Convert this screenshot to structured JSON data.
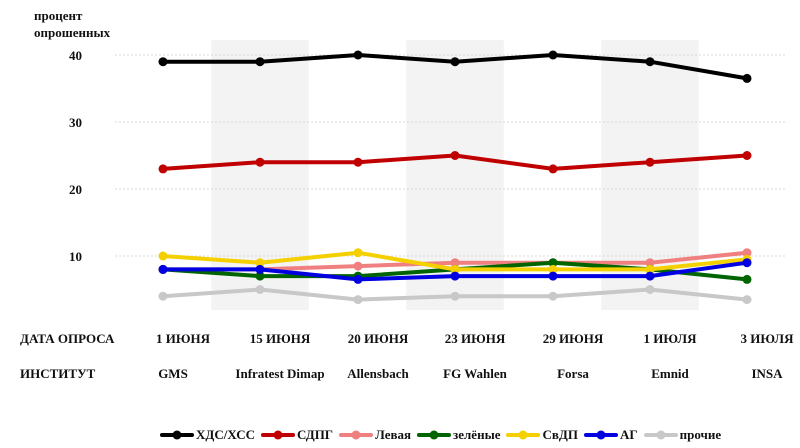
{
  "chart_data": {
    "type": "line",
    "ylabel": "процент опрошенных",
    "ylim": [
      0,
      42
    ],
    "yticks": [
      10,
      20,
      30,
      40
    ],
    "row_labels": {
      "date": "ДАТА ОПРОСА",
      "institute": "ИНСТИТУТ"
    },
    "dates": [
      "1 ИЮНЯ",
      "15 ИЮНЯ",
      "20 ИЮНЯ",
      "23 ИЮНЯ",
      "29 ИЮНЯ",
      "1 ИЮЛЯ",
      "3 ИЮЛЯ"
    ],
    "institutes": [
      "GMS",
      "Infratest Dimap",
      "Allensbach",
      "FG Wahlen",
      "Forsa",
      "Emnid",
      "INSA"
    ],
    "grid": true,
    "alternating_bands": true,
    "legend_position": "bottom",
    "series": [
      {
        "name": "ХДС/ХСС",
        "color": "#000000",
        "values": [
          39,
          39,
          40,
          39,
          40,
          39,
          36.5
        ]
      },
      {
        "name": "СДПГ",
        "color": "#c00000",
        "values": [
          23,
          24,
          24,
          25,
          23,
          24,
          25
        ]
      },
      {
        "name": "Левая",
        "color": "#f08080",
        "values": [
          8,
          8,
          8.5,
          9,
          9,
          9,
          10.5
        ]
      },
      {
        "name": "зелёные",
        "color": "#006400",
        "values": [
          8,
          7,
          7,
          8,
          9,
          8,
          6.5
        ]
      },
      {
        "name": "СвДП",
        "color": "#f5d000",
        "values": [
          10,
          9,
          10.5,
          8,
          8,
          8,
          9.5
        ]
      },
      {
        "name": "АГ",
        "color": "#0000e0",
        "values": [
          8,
          8,
          6.5,
          7,
          7,
          7,
          9
        ]
      },
      {
        "name": "прочие",
        "color": "#c8c8c8",
        "values": [
          4,
          5,
          3.5,
          4,
          4,
          5,
          3.5
        ]
      }
    ]
  }
}
